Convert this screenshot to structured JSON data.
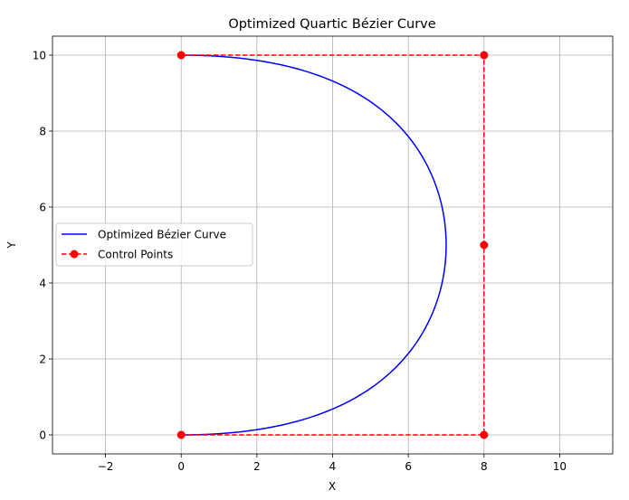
{
  "chart_data": {
    "type": "line",
    "title": "Optimized Quartic Bézier Curve",
    "xlabel": "X",
    "ylabel": "Y",
    "xlim": [
      -3.4,
      11.4
    ],
    "ylim": [
      -0.5,
      10.5
    ],
    "xticks": [
      -2,
      0,
      2,
      4,
      6,
      8,
      10
    ],
    "yticks": [
      0,
      2,
      4,
      6,
      8,
      10
    ],
    "xtick_labels": [
      "−2",
      "0",
      "2",
      "4",
      "6",
      "8",
      "10"
    ],
    "ytick_labels": [
      "0",
      "2",
      "4",
      "6",
      "8",
      "10"
    ],
    "grid": true,
    "legend_position": "center-left",
    "series": [
      {
        "name": "Optimized Bézier Curve",
        "style": "solid-line",
        "color": "#0000ff",
        "curve_degree": 4,
        "control_points": [
          [
            0,
            0
          ],
          [
            8,
            0
          ],
          [
            8,
            5
          ],
          [
            8,
            10
          ],
          [
            0,
            10
          ]
        ]
      },
      {
        "name": "Control Points",
        "style": "dashed-line-with-markers",
        "color": "#ff0000",
        "x": [
          0,
          8,
          8,
          8,
          0
        ],
        "y": [
          0,
          0,
          5,
          10,
          10
        ]
      }
    ]
  }
}
